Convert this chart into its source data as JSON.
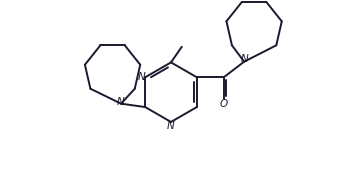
{
  "line_color": "#1a1a2e",
  "bg_color": "#ffffff",
  "line_width": 1.4,
  "figsize": [
    3.42,
    1.73
  ],
  "dpi": 100,
  "xlim": [
    0,
    10
  ],
  "ylim": [
    0,
    6
  ]
}
